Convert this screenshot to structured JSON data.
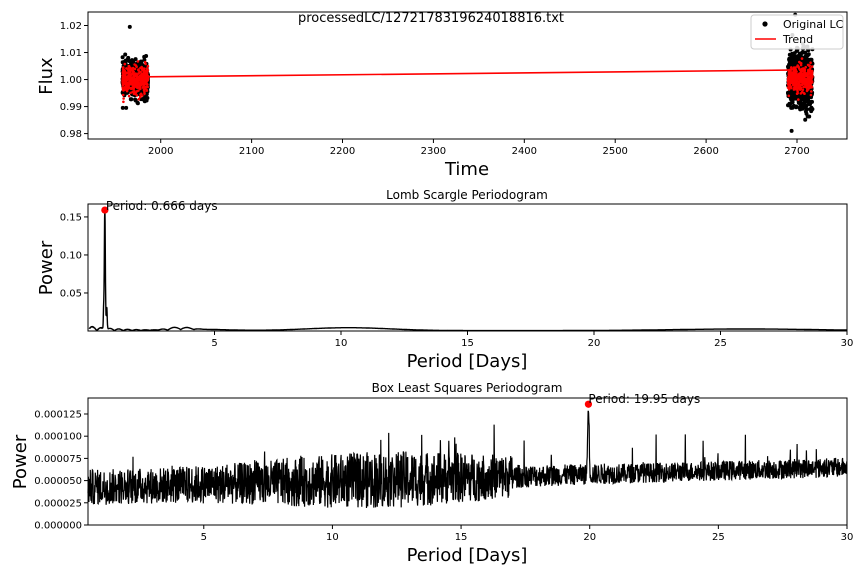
{
  "figure": {
    "suptitle": "processedLC/1272178319624018816.txt"
  },
  "chart_data": [
    {
      "type": "scatter",
      "xlabel": "Time",
      "ylabel": "Flux",
      "xlim": [
        1920,
        2755
      ],
      "ylim": [
        0.978,
        1.025
      ],
      "xticks": [
        2000,
        2100,
        2200,
        2300,
        2400,
        2500,
        2600,
        2700
      ],
      "xtick_labels": [
        "2000",
        "2100",
        "2200",
        "2300",
        "2400",
        "2500",
        "2600",
        "2700"
      ],
      "yticks": [
        0.98,
        0.99,
        1.0,
        1.01,
        1.02
      ],
      "ytick_labels": [
        "0.98",
        "0.99",
        "1.00",
        "1.01",
        "1.02"
      ],
      "legend": {
        "placement": "top-right",
        "entries": [
          {
            "label": "Original LC",
            "color": "#000000",
            "marker": "dot"
          },
          {
            "label": "Trend",
            "color": "#ff0000",
            "marker": "line"
          }
        ]
      },
      "series": [
        {
          "name": "Original LC",
          "color": "#000000",
          "segments": [
            {
              "x_start": 1958,
              "x_end": 1986,
              "center": 1.0,
              "spread": 0.0055,
              "min": 0.9895,
              "max": 1.0195
            },
            {
              "x_start": 2690,
              "x_end": 2717,
              "center": 1.0,
              "spread": 0.0095,
              "min": 0.981,
              "max": 1.024
            }
          ]
        },
        {
          "name": "Trend",
          "color": "#ff0000",
          "line": {
            "x": [
              1985,
              2692
            ],
            "y": [
              1.001,
              1.0035
            ]
          },
          "segments": [
            {
              "x_start": 1958,
              "x_end": 1986,
              "center": 1.0,
              "spread": 0.0045
            },
            {
              "x_start": 2690,
              "x_end": 2717,
              "center": 1.0,
              "spread": 0.0045
            }
          ]
        }
      ]
    },
    {
      "type": "line",
      "title": "Lomb Scargle Periodogram",
      "xlabel": "Period [Days]",
      "ylabel": "Power",
      "xlim": [
        0,
        30
      ],
      "ylim": [
        0,
        0.167
      ],
      "xticks": [
        5,
        10,
        15,
        20,
        25,
        30
      ],
      "xtick_labels": [
        "5",
        "10",
        "15",
        "20",
        "25",
        "30"
      ],
      "yticks": [
        0.05,
        0.1,
        0.15
      ],
      "ytick_labels": [
        "0.05",
        "0.10",
        "0.15"
      ],
      "line_color": "#000000",
      "peak": {
        "x": 0.666,
        "y": 0.159,
        "color": "#ff0000",
        "label": "Period: 0.666 days"
      }
    },
    {
      "type": "line",
      "title": "Box Least Squares Periodogram",
      "xlabel": "Period [Days]",
      "ylabel": "Power",
      "xlim": [
        0.5,
        30
      ],
      "ylim": [
        0,
        0.000143
      ],
      "xticks": [
        5,
        10,
        15,
        20,
        25,
        30
      ],
      "xtick_labels": [
        "5",
        "10",
        "15",
        "20",
        "25",
        "30"
      ],
      "yticks": [
        0,
        2.5e-05,
        5e-05,
        7.5e-05,
        0.0001,
        0.000125
      ],
      "ytick_labels": [
        "0.000000",
        "0.000025",
        "0.000050",
        "0.000075",
        "0.000100",
        "0.000125"
      ],
      "line_color": "#000000",
      "peak": {
        "x": 19.95,
        "y": 0.000136,
        "color": "#ff0000",
        "label": "Period: 19.95 days"
      }
    }
  ]
}
